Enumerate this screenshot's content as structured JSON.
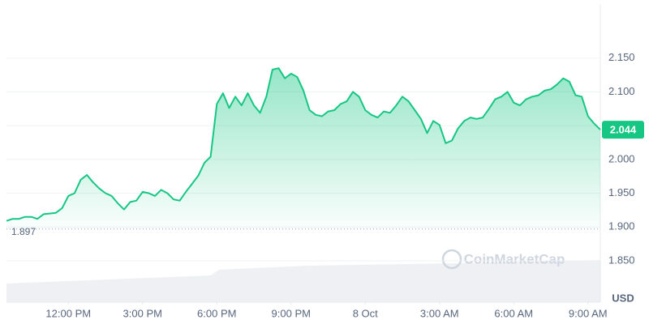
{
  "chart_data": {
    "type": "area",
    "watermark": "CoinMarketCap",
    "currency": "USD",
    "open_price": 1.897,
    "x": [
      0,
      1,
      2,
      3,
      4,
      5,
      6,
      7,
      8,
      9,
      10,
      11,
      12,
      13,
      14,
      15,
      16,
      17,
      18,
      19,
      20,
      21,
      22,
      23,
      24,
      25,
      26,
      27,
      28,
      29,
      30,
      31,
      32,
      33,
      34,
      35,
      36,
      37,
      38,
      39,
      40,
      41,
      42,
      43,
      44,
      45,
      46,
      47,
      48,
      49,
      50,
      51,
      52,
      53,
      54,
      55,
      56,
      57,
      58,
      59,
      60,
      61,
      62,
      63,
      64,
      65,
      66,
      67,
      68,
      69,
      70,
      71,
      72,
      73,
      74,
      75,
      76,
      77,
      78,
      79,
      80,
      81,
      82,
      83,
      84,
      85,
      86,
      87,
      88,
      89,
      90,
      91,
      92,
      93,
      94,
      95,
      96
    ],
    "series": [
      {
        "color": "#16c784",
        "values": [
          1.909,
          1.912,
          1.912,
          1.915,
          1.915,
          1.912,
          1.919,
          1.92,
          1.921,
          1.928,
          1.946,
          1.95,
          1.97,
          1.977,
          1.966,
          1.957,
          1.95,
          1.946,
          1.935,
          1.926,
          1.937,
          1.939,
          1.952,
          1.95,
          1.946,
          1.955,
          1.95,
          1.941,
          1.939,
          1.952,
          1.964,
          1.976,
          1.995,
          2.004,
          2.082,
          2.098,
          2.076,
          2.093,
          2.08,
          2.098,
          2.08,
          2.069,
          2.093,
          2.133,
          2.135,
          2.12,
          2.127,
          2.122,
          2.102,
          2.073,
          2.066,
          2.064,
          2.071,
          2.073,
          2.082,
          2.086,
          2.1,
          2.093,
          2.073,
          2.066,
          2.062,
          2.071,
          2.069,
          2.08,
          2.093,
          2.086,
          2.073,
          2.06,
          2.039,
          2.057,
          2.051,
          2.024,
          2.028,
          2.046,
          2.057,
          2.062,
          2.06,
          2.062,
          2.075,
          2.089,
          2.093,
          2.1,
          2.084,
          2.08,
          2.089,
          2.093,
          2.095,
          2.102,
          2.104,
          2.111,
          2.12,
          2.115,
          2.095,
          2.093,
          2.064,
          2.053,
          2.044
        ]
      }
    ],
    "xlim": [
      0,
      96
    ],
    "xticks": [
      {
        "value": 10,
        "label": "12:00 PM"
      },
      {
        "value": 22,
        "label": "3:00 PM"
      },
      {
        "value": 34,
        "label": "6:00 PM"
      },
      {
        "value": 46,
        "label": "9:00 PM"
      },
      {
        "value": 58,
        "label": "8 Oct"
      },
      {
        "value": 70,
        "label": "3:00 AM"
      },
      {
        "value": 82,
        "label": "6:00 AM"
      },
      {
        "value": 94,
        "label": "9:00 AM"
      }
    ],
    "ylim": [
      1.79,
      2.23
    ],
    "yticks": [
      {
        "value": 1.85,
        "label": "1.850"
      },
      {
        "value": 1.9,
        "label": "1.900"
      },
      {
        "value": 1.95,
        "label": "1.950"
      },
      {
        "value": 2.0,
        "label": "2.000"
      },
      {
        "value": 2.05,
        "label": "2.050"
      },
      {
        "value": 2.1,
        "label": "2.100"
      },
      {
        "value": 2.15,
        "label": "2.150"
      }
    ],
    "grid": true
  }
}
